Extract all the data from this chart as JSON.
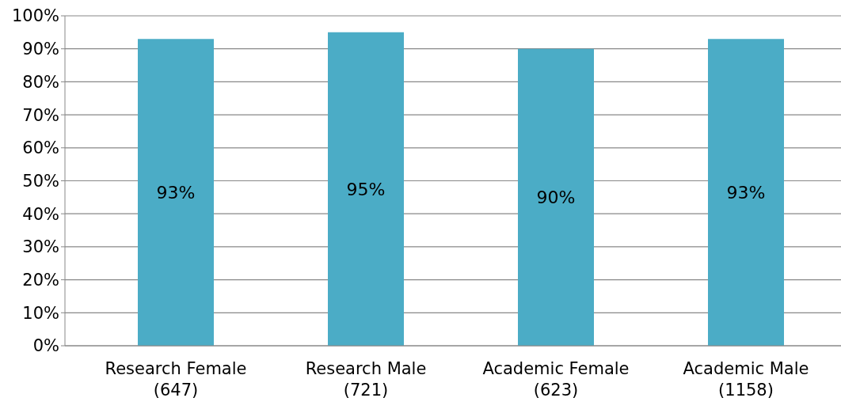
{
  "chart_data": {
    "type": "bar",
    "categories": [
      "Research Female\n(647)",
      "Research Male\n(721)",
      "Academic Female\n(623)",
      "Academic Male\n(1158)"
    ],
    "values": [
      93,
      95,
      90,
      93
    ],
    "value_labels": [
      "93%",
      "95%",
      "90%",
      "93%"
    ],
    "color": "#4bacc6",
    "ylim": [
      0,
      100
    ],
    "yticks": [
      {
        "value": 0,
        "label": "0%"
      },
      {
        "value": 10,
        "label": "10%"
      },
      {
        "value": 20,
        "label": "20%"
      },
      {
        "value": 30,
        "label": "30%"
      },
      {
        "value": 40,
        "label": "40%"
      },
      {
        "value": 50,
        "label": "50%"
      },
      {
        "value": 60,
        "label": "60%"
      },
      {
        "value": 70,
        "label": "70%"
      },
      {
        "value": 80,
        "label": "80%"
      },
      {
        "value": 90,
        "label": "90%"
      },
      {
        "value": 100,
        "label": "100%"
      }
    ],
    "grid": "y",
    "legend": false
  }
}
